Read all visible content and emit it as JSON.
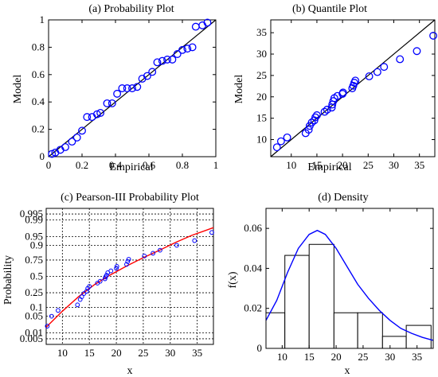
{
  "chart_data": [
    {
      "type": "scatter",
      "title": "(a) Probability Plot",
      "xlabel": "Empirical",
      "ylabel": "Model",
      "xlim": [
        0,
        1
      ],
      "ylim": [
        0,
        1
      ],
      "xticks": [
        0,
        0.2,
        0.4,
        0.6,
        0.8,
        1
      ],
      "yticks": [
        0,
        0.2,
        0.4,
        0.6,
        0.8,
        1
      ],
      "reference_line": [
        [
          0,
          0
        ],
        [
          1,
          1
        ]
      ],
      "marker_color": "#0000ff",
      "points": [
        [
          0.02,
          0.02
        ],
        [
          0.04,
          0.03
        ],
        [
          0.07,
          0.05
        ],
        [
          0.1,
          0.07
        ],
        [
          0.14,
          0.11
        ],
        [
          0.17,
          0.14
        ],
        [
          0.2,
          0.19
        ],
        [
          0.23,
          0.29
        ],
        [
          0.26,
          0.29
        ],
        [
          0.29,
          0.31
        ],
        [
          0.31,
          0.32
        ],
        [
          0.35,
          0.39
        ],
        [
          0.38,
          0.39
        ],
        [
          0.41,
          0.46
        ],
        [
          0.44,
          0.5
        ],
        [
          0.47,
          0.5
        ],
        [
          0.5,
          0.5
        ],
        [
          0.53,
          0.51
        ],
        [
          0.56,
          0.57
        ],
        [
          0.59,
          0.59
        ],
        [
          0.62,
          0.62
        ],
        [
          0.65,
          0.69
        ],
        [
          0.68,
          0.7
        ],
        [
          0.71,
          0.71
        ],
        [
          0.74,
          0.71
        ],
        [
          0.77,
          0.75
        ],
        [
          0.8,
          0.78
        ],
        [
          0.83,
          0.79
        ],
        [
          0.86,
          0.8
        ],
        [
          0.88,
          0.95
        ],
        [
          0.92,
          0.96
        ],
        [
          0.95,
          0.98
        ]
      ]
    },
    {
      "type": "scatter",
      "title": "(b) Quantile Plot",
      "xlabel": "Empirical",
      "ylabel": "Model",
      "xlim": [
        6,
        38
      ],
      "ylim": [
        6,
        38
      ],
      "xticks": [
        10,
        15,
        20,
        25,
        30,
        35
      ],
      "yticks": [
        10,
        15,
        20,
        25,
        30,
        35
      ],
      "reference_line": [
        [
          6,
          6
        ],
        [
          38,
          38
        ]
      ],
      "marker_color": "#0000ff",
      "points": [
        [
          7.2,
          8.2
        ],
        [
          8.0,
          9.6
        ],
        [
          9.2,
          10.5
        ],
        [
          12.8,
          11.5
        ],
        [
          13.4,
          12.3
        ],
        [
          13.6,
          13.2
        ],
        [
          14.0,
          14.0
        ],
        [
          14.5,
          14.5
        ],
        [
          14.7,
          15.2
        ],
        [
          15.0,
          15.7
        ],
        [
          16.5,
          16.5
        ],
        [
          17.0,
          17.0
        ],
        [
          17.9,
          17.5
        ],
        [
          18.0,
          18.2
        ],
        [
          18.2,
          19.0
        ],
        [
          18.4,
          19.7
        ],
        [
          19.0,
          20.2
        ],
        [
          20.0,
          20.7
        ],
        [
          20.1,
          21.0
        ],
        [
          21.9,
          22.0
        ],
        [
          22.1,
          22.6
        ],
        [
          22.3,
          23.3
        ],
        [
          22.5,
          23.8
        ],
        [
          25.2,
          24.8
        ],
        [
          26.8,
          25.8
        ],
        [
          28.1,
          27.0
        ],
        [
          31.2,
          28.8
        ],
        [
          34.5,
          30.7
        ],
        [
          37.7,
          34.3
        ]
      ]
    },
    {
      "type": "scatter",
      "title": "(c) Pearson-III Probability Plot",
      "xlabel": "x",
      "ylabel": "Probability",
      "xlim": [
        7,
        38
      ],
      "xticks": [
        10,
        15,
        20,
        25,
        30,
        35
      ],
      "yticks": [
        0.005,
        0.01,
        0.05,
        0.1,
        0.25,
        0.5,
        0.75,
        0.9,
        0.95,
        0.99,
        0.995
      ],
      "ytick_labels": [
        "0.005",
        "0.01",
        "0.05",
        "0.1",
        "0.25",
        "0.5",
        "0.75",
        "0.9",
        "0.95",
        "0.99",
        "0.995"
      ],
      "grid": "dashed",
      "fit_line_color": "#ff0000",
      "marker_color": "#0000ff",
      "fit_curve": [
        [
          7,
          0.018
        ],
        [
          10,
          0.075
        ],
        [
          13,
          0.2
        ],
        [
          16,
          0.37
        ],
        [
          19,
          0.53
        ],
        [
          22,
          0.67
        ],
        [
          25,
          0.78
        ],
        [
          28,
          0.86
        ],
        [
          31,
          0.92
        ],
        [
          34,
          0.955
        ],
        [
          38,
          0.978
        ]
      ],
      "points": [
        [
          7.2,
          0.02
        ],
        [
          8.0,
          0.05
        ],
        [
          9.2,
          0.08
        ],
        [
          12.8,
          0.12
        ],
        [
          13.3,
          0.17
        ],
        [
          13.6,
          0.2
        ],
        [
          14.0,
          0.24
        ],
        [
          14.5,
          0.27
        ],
        [
          14.7,
          0.31
        ],
        [
          15.0,
          0.34
        ],
        [
          16.5,
          0.39
        ],
        [
          17.0,
          0.42
        ],
        [
          17.9,
          0.46
        ],
        [
          18.0,
          0.49
        ],
        [
          18.2,
          0.52
        ],
        [
          18.4,
          0.56
        ],
        [
          19.0,
          0.59
        ],
        [
          20.0,
          0.63
        ],
        [
          20.1,
          0.66
        ],
        [
          21.9,
          0.69
        ],
        [
          22.1,
          0.73
        ],
        [
          22.3,
          0.76
        ],
        [
          25.2,
          0.8
        ],
        [
          26.8,
          0.83
        ],
        [
          28.1,
          0.86
        ],
        [
          31.2,
          0.9
        ],
        [
          34.5,
          0.93
        ],
        [
          37.7,
          0.965
        ]
      ]
    },
    {
      "type": "bar",
      "title": "(d) Density",
      "xlabel": "x",
      "ylabel": "f(x)",
      "xlim": [
        7,
        38
      ],
      "ylim": [
        0,
        0.07
      ],
      "xticks": [
        10,
        15,
        20,
        25,
        30,
        35
      ],
      "yticks": [
        0,
        0.02,
        0.04,
        0.06
      ],
      "bins": [
        {
          "from": 7.0,
          "to": 10.5,
          "value": 0.0178
        },
        {
          "from": 10.5,
          "to": 15.0,
          "value": 0.0465
        },
        {
          "from": 15.0,
          "to": 19.6,
          "value": 0.052
        },
        {
          "from": 19.6,
          "to": 24.0,
          "value": 0.0178
        },
        {
          "from": 24.0,
          "to": 28.6,
          "value": 0.0178
        },
        {
          "from": 28.6,
          "to": 33.0,
          "value": 0.006
        },
        {
          "from": 33.0,
          "to": 37.6,
          "value": 0.0115
        }
      ],
      "density_line_color": "#0000ff",
      "density_curve": [
        [
          7,
          0.014
        ],
        [
          9,
          0.024
        ],
        [
          11,
          0.038
        ],
        [
          13,
          0.05
        ],
        [
          15,
          0.057
        ],
        [
          16.5,
          0.059
        ],
        [
          18,
          0.057
        ],
        [
          20,
          0.05
        ],
        [
          22,
          0.041
        ],
        [
          24,
          0.032
        ],
        [
          26,
          0.025
        ],
        [
          28,
          0.019
        ],
        [
          30,
          0.014
        ],
        [
          32,
          0.01
        ],
        [
          34,
          0.0075
        ],
        [
          36,
          0.0055
        ],
        [
          38,
          0.004
        ]
      ]
    }
  ]
}
